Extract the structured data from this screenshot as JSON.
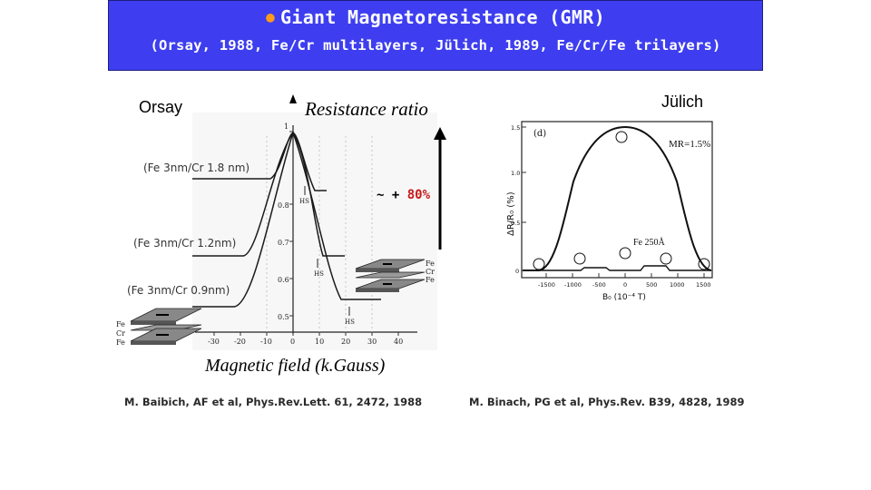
{
  "banner": {
    "title": "Giant Magnetoresistance (GMR)",
    "subtitle": "(Orsay, 1988, Fe/Cr multilayers, Jülich, 1989, Fe/Cr/Fe trilayers)",
    "bg_color": "#3e3ef0",
    "bullet_color": "#ff9a1a"
  },
  "left_figure": {
    "lab_label": "Orsay",
    "y_title": "Resistance ratio",
    "x_title": "Magnetic field (k.Gauss)",
    "ratio_prefix": "~ +",
    "ratio_value": "80%",
    "y_ticks": [
      "1",
      "0.8",
      "0.7",
      "0.6",
      "0.5"
    ],
    "x_ticks": [
      "-30",
      "-20",
      "-10",
      "0",
      "10",
      "20",
      "30",
      "40"
    ],
    "curve_labels": [
      "(Fe 3nm/Cr 1.8 nm)",
      "(Fe 3nm/Cr 1.2nm)",
      "(Fe 3nm/Cr 0.9nm)"
    ],
    "hs_label": "HS",
    "stack_layers": [
      "Fe",
      "Cr",
      "Fe"
    ]
  },
  "right_figure": {
    "lab_label": "Jülich",
    "panel_label": "(d)",
    "mr_label": "MR=1.5%",
    "y_title": "ΔR/R₀ (%)",
    "x_title": "B₀ (10⁻⁴ T)",
    "y_ticks": [
      "1.5",
      "1.0",
      "0.5",
      "0"
    ],
    "x_ticks": [
      "-1500",
      "-1000",
      "-500",
      "0",
      "500",
      "1000",
      "1500"
    ],
    "fe_label": "Fe 250Å"
  },
  "references": {
    "left": "M. Baibich, AF et al, Phys.Rev.Lett. 61, 2472, 1988",
    "right": "M. Binach, PG et al, Phys.Rev. B39, 4828, 1989"
  }
}
